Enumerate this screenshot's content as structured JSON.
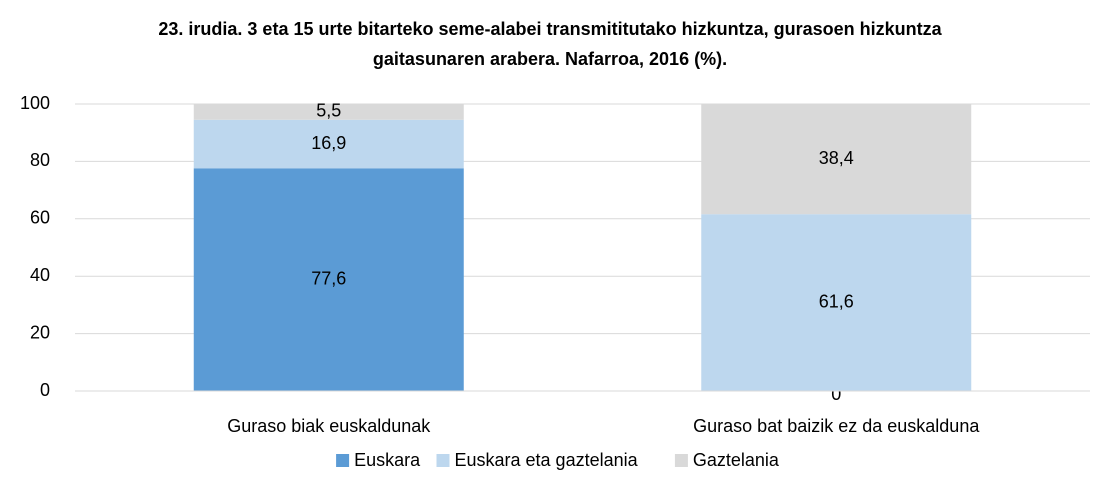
{
  "chart_data": {
    "type": "stacked_bar",
    "title": "23. irudia. 3 eta 15 urte bitarteko seme-alabei transmititutako hizkuntza, gurasoen hizkuntza gaitasunaren arabera. Nafarroa, 2016 (%).",
    "categories": [
      "Guraso biak euskaldunak",
      "Guraso bat baizik ez da euskalduna"
    ],
    "series": [
      {
        "name": "Euskara",
        "color": "#5b9bd5",
        "values": [
          77.6,
          0
        ],
        "value_labels": [
          "77,6",
          "0"
        ]
      },
      {
        "name": "Euskara eta gaztelania",
        "color": "#bdd7ee",
        "values": [
          16.9,
          61.6
        ],
        "value_labels": [
          "16,9",
          "61,6"
        ]
      },
      {
        "name": "Gaztelania",
        "color": "#d9d9d9",
        "values": [
          5.5,
          38.4
        ],
        "value_labels": [
          "5,5",
          "38,4"
        ]
      }
    ],
    "ylim": [
      0,
      100
    ],
    "yticks": [
      0,
      20,
      40,
      60,
      80,
      100
    ],
    "grid": true,
    "legend": "bottom"
  }
}
